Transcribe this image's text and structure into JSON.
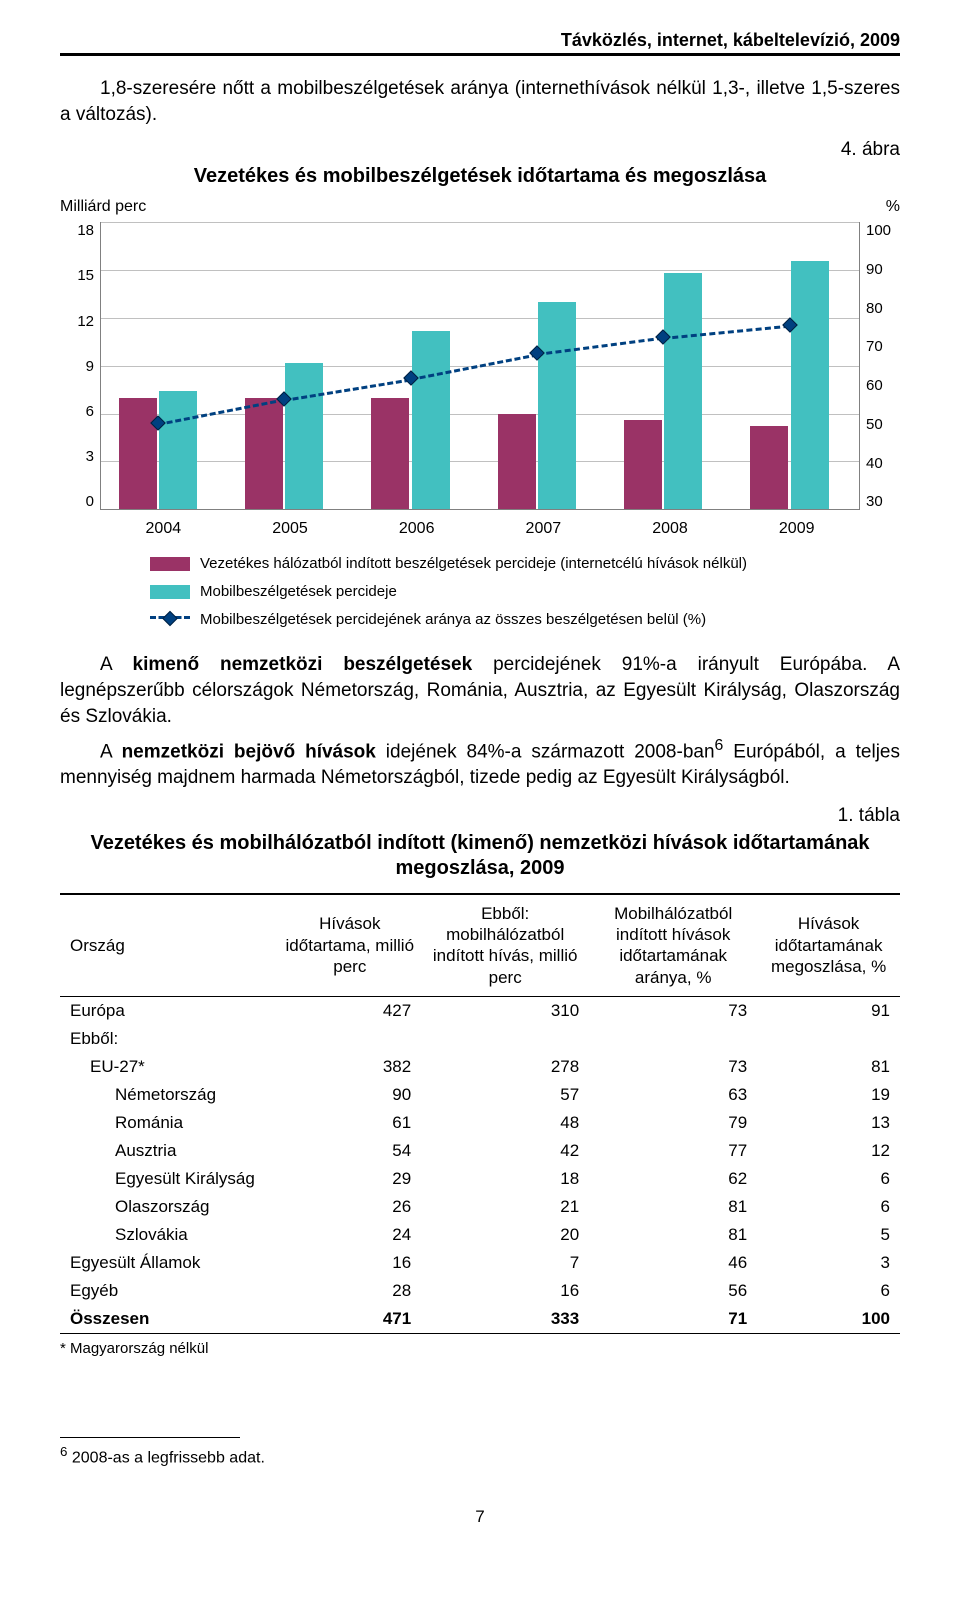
{
  "header": {
    "topic": "Távközlés, internet, kábeltelevízió, 2009"
  },
  "intro": {
    "p1": "1,8-szeresére nőtt a mobilbeszélgetések aránya (internethívások nélkül 1,3-, illetve 1,5-szeres a változás)."
  },
  "chart": {
    "figure_label": "4. ábra",
    "title": "Vezetékes és mobilbeszélgetések időtartama és megoszlása",
    "left_axis_title": "Milliárd perc",
    "right_axis_title": "%",
    "left_ticks": [
      "18",
      "15",
      "12",
      "9",
      "6",
      "3",
      "0"
    ],
    "right_ticks": [
      "100",
      "90",
      "80",
      "70",
      "60",
      "50",
      "40",
      "30"
    ],
    "left_max": 18,
    "right_min": 30,
    "right_max": 100,
    "years": [
      "2004",
      "2005",
      "2006",
      "2007",
      "2008",
      "2009"
    ],
    "bars_vezetekes": [
      7.0,
      7.0,
      7.0,
      6.0,
      5.6,
      5.2
    ],
    "bars_mobil": [
      7.4,
      9.2,
      11.2,
      13.0,
      14.8,
      15.6
    ],
    "line_percent": [
      51,
      57,
      62,
      68,
      72,
      75
    ],
    "colors": {
      "vezetekes": "#9a3366",
      "mobil": "#42c0c0",
      "line": "#004080",
      "grid": "#c0c0c0"
    },
    "legend": {
      "l1": "Vezetékes hálózatból indított beszélgetések percideje (internetcélú hívások nélkül)",
      "l2": "Mobilbeszélgetések percideje",
      "l3": "Mobilbeszélgetések percidejének aránya az összes beszélgetésen belül (%)"
    }
  },
  "body": {
    "p1a": "A ",
    "p1b": "kimenő nemzetközi beszélgetések",
    "p1c": " percidejének 91%-a irányult Európába. A legnépszerűbb célországok Németország, Románia, Ausztria, az Egyesült Királyság, Olaszország és Szlovákia.",
    "p2a": "A ",
    "p2b": "nemzetközi bejövő hívások",
    "p2c": " idejének 84%-a származott 2008-ban",
    "p2sup": "6",
    "p2d": " Európából, a teljes mennyiség majdnem harmada Németországból, tizede pedig az Egyesült Királyságból."
  },
  "table": {
    "label": "1. tábla",
    "title": "Vezetékes és mobilhálózatból indított (kimenő) nemzetközi hívások időtartamának megoszlása, 2009",
    "columns": [
      "Ország",
      "Hívások időtartama, millió perc",
      "Ebből: mobilhálózatból indított hívás, millió perc",
      "Mobilhálózatból indított hívások időtartamának aránya, %",
      "Hívások időtartamának megoszlása, %"
    ],
    "rows": [
      {
        "label": "Európa",
        "indent": 0,
        "v": [
          "427",
          "310",
          "73",
          "91"
        ]
      },
      {
        "label": "Ebből:",
        "indent": 0,
        "v": [
          "",
          "",
          "",
          ""
        ]
      },
      {
        "label": "EU-27*",
        "indent": 1,
        "v": [
          "382",
          "278",
          "73",
          "81"
        ]
      },
      {
        "label": "Németország",
        "indent": 2,
        "v": [
          "90",
          "57",
          "63",
          "19"
        ]
      },
      {
        "label": "Románia",
        "indent": 2,
        "v": [
          "61",
          "48",
          "79",
          "13"
        ]
      },
      {
        "label": "Ausztria",
        "indent": 2,
        "v": [
          "54",
          "42",
          "77",
          "12"
        ]
      },
      {
        "label": "Egyesült Királyság",
        "indent": 2,
        "v": [
          "29",
          "18",
          "62",
          "6"
        ]
      },
      {
        "label": "Olaszország",
        "indent": 2,
        "v": [
          "26",
          "21",
          "81",
          "6"
        ]
      },
      {
        "label": "Szlovákia",
        "indent": 2,
        "v": [
          "24",
          "20",
          "81",
          "5"
        ]
      },
      {
        "label": "Egyesült Államok",
        "indent": 0,
        "v": [
          "16",
          "7",
          "46",
          "3"
        ]
      },
      {
        "label": "Egyéb",
        "indent": 0,
        "v": [
          "28",
          "16",
          "56",
          "6"
        ]
      },
      {
        "label": "Összesen",
        "indent": 0,
        "v": [
          "471",
          "333",
          "71",
          "100"
        ],
        "total": true
      }
    ],
    "footnote": "* Magyarország nélkül"
  },
  "footnote": {
    "n6": "6",
    "text": " 2008-as a legfrissebb adat."
  },
  "page_number": "7"
}
